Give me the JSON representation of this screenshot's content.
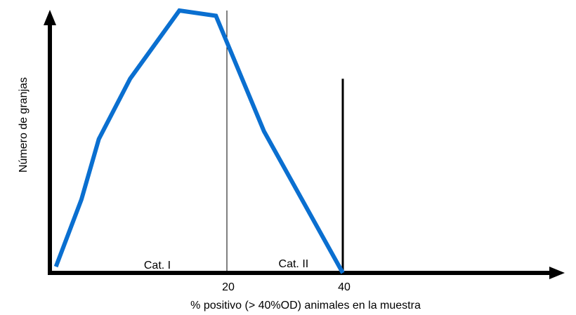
{
  "chart_data": {
    "type": "line",
    "title": "",
    "xlabel": "% positivo (> 40%OD) animales en la muestra",
    "ylabel": "Número de granjas",
    "x_ticks": [
      20,
      40
    ],
    "xlim": [
      -11,
      78
    ],
    "ylim": [
      0,
      100
    ],
    "grid": false,
    "series": [
      {
        "color": "#0a6fd0",
        "x": [
          -9.5,
          -5.1,
          -2.1,
          3.3,
          11.8,
          18.1,
          26.4,
          40
        ],
        "y": [
          2.4,
          28,
          51,
          74,
          100,
          98,
          54,
          0
        ]
      }
    ],
    "reference_lines": [
      {
        "x": 20,
        "style": "thin",
        "y_top": 100
      },
      {
        "x": 40,
        "style": "thick",
        "y_top": 74
      }
    ],
    "annotations": [
      {
        "text": "Cat. I",
        "x": 8,
        "y": 3
      },
      {
        "text": "Cat. II",
        "x": 31.5,
        "y": 3.5
      }
    ]
  }
}
